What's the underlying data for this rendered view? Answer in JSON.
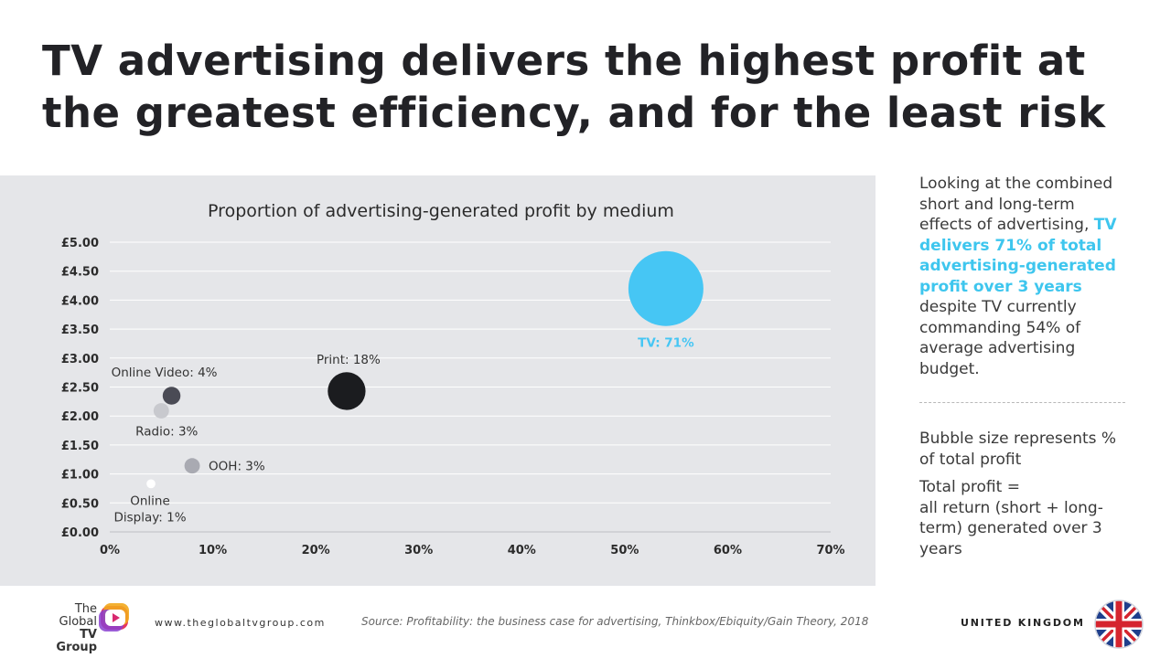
{
  "slide": {
    "title": "TV advertising delivers the highest profit at the greatest efficiency, and for the least risk"
  },
  "chart_data": {
    "type": "scatter",
    "title": "Proportion of advertising-generated profit by medium",
    "xlabel": "",
    "ylabel": "",
    "xlim": [
      0,
      70
    ],
    "ylim": [
      0,
      5
    ],
    "x_ticks": [
      "0%",
      "10%",
      "20%",
      "30%",
      "40%",
      "50%",
      "60%",
      "70%"
    ],
    "y_ticks": [
      "£0.00",
      "£0.50",
      "£1.00",
      "£1.50",
      "£2.00",
      "£2.50",
      "£3.00",
      "£3.50",
      "£4.00",
      "£4.50",
      "£5.00"
    ],
    "grid": true,
    "points": [
      {
        "label": "TV: 71%",
        "x": 54,
        "y": 4.2,
        "size": 71,
        "color": "#46c6f4",
        "label_color": "#46c6f4"
      },
      {
        "label": "Print: 18%",
        "x": 23,
        "y": 2.43,
        "size": 18,
        "color": "#1b1c1f",
        "label_color": "#333333"
      },
      {
        "label": "Online Video: 4%",
        "x": 6,
        "y": 2.35,
        "size": 4,
        "color": "#4a4b55",
        "label_color": "#333333"
      },
      {
        "label": "Radio: 3%",
        "x": 5,
        "y": 2.09,
        "size": 3,
        "color": "#c8c9ce",
        "label_color": "#333333"
      },
      {
        "label": "OOH: 3%",
        "x": 8,
        "y": 1.14,
        "size": 3,
        "color": "#a9aab2",
        "label_color": "#333333"
      },
      {
        "label_lines": [
          "Online",
          "Display: 1%"
        ],
        "x": 4,
        "y": 0.83,
        "size": 1,
        "color": "#ffffff",
        "label_color": "#333333"
      }
    ]
  },
  "side": {
    "intro": "Looking at the combined short and long-term effects of advertising,",
    "highlight": "TV delivers 71% of total advertising-generated profit over 3 years",
    "outro": "despite TV currently commanding 54% of average advertising budget.",
    "bubble_note": "Bubble size represents % of total profit",
    "profit_note_1": "Total profit =",
    "profit_note_2": "all return (short + long-term) generated over 3 years"
  },
  "footer": {
    "logo_line1": "The",
    "logo_line2": "Global",
    "logo_line3": "TV Group",
    "website": "www.theglobaltvgroup.com",
    "source": "Source:  Profitability: the business case for advertising, Thinkbox/Ebiquity/Gain Theory, 2018",
    "country": "UNITED KINGDOM",
    "logo_icon": "global-tv-group-logo",
    "flag_icon": "uk-flag"
  }
}
